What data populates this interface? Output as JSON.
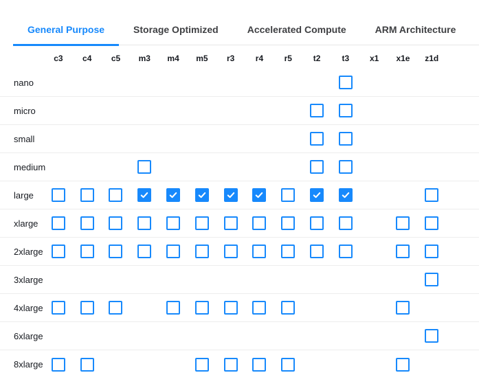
{
  "tabs": [
    {
      "label": "General Purpose",
      "active": true
    },
    {
      "label": "Storage Optimized",
      "active": false
    },
    {
      "label": "Accelerated Compute",
      "active": false
    },
    {
      "label": "ARM Architecture",
      "active": false
    }
  ],
  "matrix": {
    "columns": [
      "c3",
      "c4",
      "c5",
      "m3",
      "m4",
      "m5",
      "r3",
      "r4",
      "r5",
      "t2",
      "t3",
      "x1",
      "x1e",
      "z1d"
    ],
    "rows": [
      {
        "label": "nano",
        "cells": [
          "none",
          "none",
          "none",
          "none",
          "none",
          "none",
          "none",
          "none",
          "none",
          "none",
          "unchecked",
          "none",
          "none",
          "none"
        ]
      },
      {
        "label": "micro",
        "cells": [
          "none",
          "none",
          "none",
          "none",
          "none",
          "none",
          "none",
          "none",
          "none",
          "unchecked",
          "unchecked",
          "none",
          "none",
          "none"
        ]
      },
      {
        "label": "small",
        "cells": [
          "none",
          "none",
          "none",
          "none",
          "none",
          "none",
          "none",
          "none",
          "none",
          "unchecked",
          "unchecked",
          "none",
          "none",
          "none"
        ]
      },
      {
        "label": "medium",
        "cells": [
          "none",
          "none",
          "none",
          "unchecked",
          "none",
          "none",
          "none",
          "none",
          "none",
          "unchecked",
          "unchecked",
          "none",
          "none",
          "none"
        ]
      },
      {
        "label": "large",
        "cells": [
          "unchecked",
          "unchecked",
          "unchecked",
          "checked",
          "checked",
          "checked",
          "checked",
          "checked",
          "unchecked",
          "checked",
          "checked",
          "none",
          "none",
          "unchecked"
        ]
      },
      {
        "label": "xlarge",
        "cells": [
          "unchecked",
          "unchecked",
          "unchecked",
          "unchecked",
          "unchecked",
          "unchecked",
          "unchecked",
          "unchecked",
          "unchecked",
          "unchecked",
          "unchecked",
          "none",
          "unchecked",
          "unchecked"
        ]
      },
      {
        "label": "2xlarge",
        "cells": [
          "unchecked",
          "unchecked",
          "unchecked",
          "unchecked",
          "unchecked",
          "unchecked",
          "unchecked",
          "unchecked",
          "unchecked",
          "unchecked",
          "unchecked",
          "none",
          "unchecked",
          "unchecked"
        ]
      },
      {
        "label": "3xlarge",
        "cells": [
          "none",
          "none",
          "none",
          "none",
          "none",
          "none",
          "none",
          "none",
          "none",
          "none",
          "none",
          "none",
          "none",
          "unchecked"
        ]
      },
      {
        "label": "4xlarge",
        "cells": [
          "unchecked",
          "unchecked",
          "unchecked",
          "none",
          "unchecked",
          "unchecked",
          "unchecked",
          "unchecked",
          "unchecked",
          "none",
          "none",
          "none",
          "unchecked",
          "none"
        ]
      },
      {
        "label": "6xlarge",
        "cells": [
          "none",
          "none",
          "none",
          "none",
          "none",
          "none",
          "none",
          "none",
          "none",
          "none",
          "none",
          "none",
          "none",
          "unchecked"
        ]
      },
      {
        "label": "8xlarge",
        "cells": [
          "unchecked",
          "unchecked",
          "none",
          "none",
          "none",
          "unchecked",
          "unchecked",
          "unchecked",
          "unchecked",
          "none",
          "none",
          "none",
          "unchecked",
          "none"
        ]
      }
    ]
  },
  "colors": {
    "accent": "#1789fc",
    "tab_inactive_text": "#3f4043",
    "row_divider": "#ededed",
    "tab_bar_border": "#e6e6e6",
    "text": "#16191f"
  }
}
